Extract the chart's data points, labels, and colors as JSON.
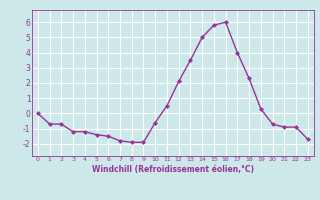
{
  "x": [
    0,
    1,
    2,
    3,
    4,
    5,
    6,
    7,
    8,
    9,
    10,
    11,
    12,
    13,
    14,
    15,
    16,
    17,
    18,
    19,
    20,
    21,
    22,
    23
  ],
  "y": [
    0,
    -0.7,
    -0.7,
    -1.2,
    -1.2,
    -1.4,
    -1.5,
    -1.8,
    -1.9,
    -1.9,
    -0.6,
    0.5,
    2.1,
    3.5,
    5.0,
    5.8,
    6.0,
    4.0,
    2.3,
    0.3,
    -0.7,
    -0.9,
    -0.9,
    -1.7
  ],
  "line_color": "#993399",
  "marker": "D",
  "marker_size": 2.0,
  "line_width": 1.0,
  "bg_color": "#cce8e8",
  "grid_color": "#ffffff",
  "xlabel": "Windchill (Refroidissement éolien,°C)",
  "xlabel_color": "#993399",
  "tick_color": "#993399",
  "ylabel_ticks": [
    -2,
    -1,
    0,
    1,
    2,
    3,
    4,
    5,
    6
  ],
  "xlim": [
    -0.5,
    23.5
  ],
  "ylim": [
    -2.8,
    6.8
  ],
  "figsize": [
    3.2,
    2.0
  ],
  "dpi": 100
}
